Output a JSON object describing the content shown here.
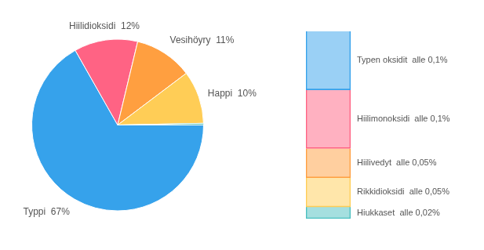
{
  "chart_data": [
    {
      "type": "pie",
      "categories": [
        "Typpi  67%",
        "Hiilidioksidi  12%",
        "Vesihöyry  11%",
        "Happi  10%",
        null
      ],
      "values": [
        67,
        12,
        11,
        10,
        0.32
      ]
    },
    {
      "type": "bar",
      "stacked": true,
      "categories": [
        null
      ],
      "series": [
        {
          "name": "Typen oksidit  alle 0,1%",
          "values": [
            0.1
          ]
        },
        {
          "name": "Hiilimonoksidi  alle 0,1%",
          "values": [
            0.1
          ]
        },
        {
          "name": "Hiilivedyt  alle 0,05%",
          "values": [
            0.05
          ]
        },
        {
          "name": "Rikkidioksidi  alle 0,05%",
          "values": [
            0.05
          ]
        },
        {
          "name": "Hiukkaset  alle 0,02%",
          "values": [
            0.02
          ]
        }
      ],
      "ylim": [
        0,
        0.32
      ],
      "tick_labels": false
    }
  ]
}
